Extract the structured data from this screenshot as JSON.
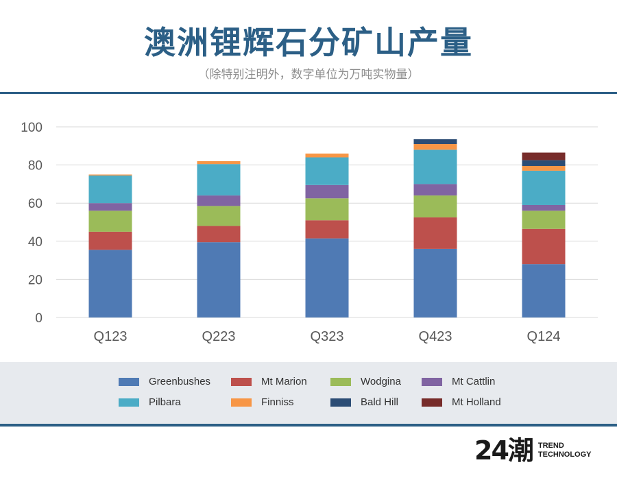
{
  "header": {
    "title": "澳洲锂辉石分矿山产量",
    "subtitle": "（除特别注明外，数字单位为万吨实物量）"
  },
  "brand": {
    "mark": "24潮",
    "line1": "TREND",
    "line2": "TECHNOLOGY"
  },
  "chart_data": {
    "type": "bar",
    "stacked": true,
    "categories": [
      "Q123",
      "Q223",
      "Q323",
      "Q423",
      "Q124"
    ],
    "ylim": [
      0,
      100
    ],
    "yticks": [
      "0",
      "20",
      "40",
      "60",
      "80",
      "100"
    ],
    "grid": true,
    "legend_position": "bottom",
    "series": [
      {
        "name": "Greenbushes",
        "color": "#4f7ab4",
        "values": [
          35.5,
          39.5,
          41.5,
          36,
          28
        ]
      },
      {
        "name": "Mt Marion",
        "color": "#bd504c",
        "values": [
          9.5,
          8.5,
          9.5,
          16.5,
          18.5
        ]
      },
      {
        "name": "Wodgina",
        "color": "#9bbb59",
        "values": [
          11,
          10.5,
          11.5,
          11.5,
          9.5
        ]
      },
      {
        "name": "Mt Cattlin",
        "color": "#8064a2",
        "values": [
          4,
          5.5,
          7,
          6,
          3
        ]
      },
      {
        "name": "Pilbara",
        "color": "#4bacc6",
        "values": [
          14.5,
          16.5,
          14.5,
          18,
          18
        ]
      },
      {
        "name": "Finniss",
        "color": "#f79646",
        "values": [
          0.5,
          1.5,
          2,
          3,
          2.5
        ]
      },
      {
        "name": "Bald Hill",
        "color": "#2c4d75",
        "values": [
          0,
          0,
          0,
          2.5,
          3
        ]
      },
      {
        "name": "Mt Holland",
        "color": "#772c2a",
        "values": [
          0,
          0,
          0,
          0,
          4
        ]
      }
    ]
  }
}
